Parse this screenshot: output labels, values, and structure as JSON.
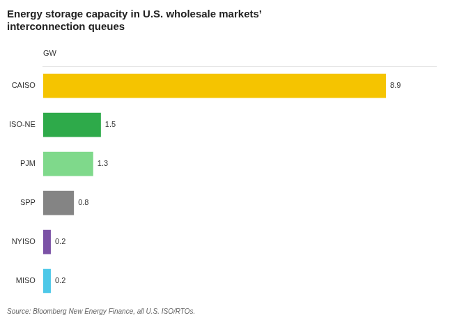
{
  "chart_data": {
    "type": "bar",
    "orientation": "horizontal",
    "title": [
      "Energy storage capacity in U.S. wholesale markets’",
      "interconnection queues"
    ],
    "xlabel": "GW",
    "annotations": [
      "Source: Bloomberg New Energy Finance, all U.S. ISO/RTOs."
    ],
    "categories": [
      "CAISO",
      "ISO-NE",
      "PJM",
      "SPP",
      "NYISO",
      "MISO"
    ],
    "values": [
      8.9,
      1.5,
      1.3,
      0.8,
      0.2,
      0.2
    ],
    "colors": [
      "#F5C400",
      "#2EAA4A",
      "#7FD98B",
      "#848484",
      "#7B52A6",
      "#4DC8E8"
    ],
    "xlim": [
      0,
      10.2
    ],
    "tick_labels": "y",
    "data_labels": true,
    "grid": false
  }
}
